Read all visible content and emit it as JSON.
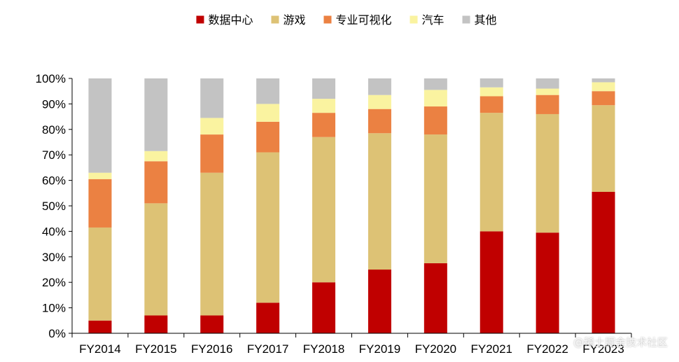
{
  "chart_data": {
    "type": "bar",
    "stacked": true,
    "categories": [
      "FY2014",
      "FY2015",
      "FY2016",
      "FY2017",
      "FY2018",
      "FY2019",
      "FY2020",
      "FY2021",
      "FY2022",
      "FY2023"
    ],
    "series": [
      {
        "name": "数据中心",
        "color": "#C00000",
        "values": [
          5,
          7,
          7,
          12,
          20,
          25,
          27.5,
          40,
          39.5,
          55.5
        ]
      },
      {
        "name": "游戏",
        "color": "#DDC275",
        "values": [
          36.5,
          44,
          56,
          59,
          57,
          53.5,
          50.5,
          46.5,
          46.5,
          34
        ]
      },
      {
        "name": "专业可视化",
        "color": "#EB8142",
        "values": [
          19,
          16.5,
          15,
          12,
          9.5,
          9.5,
          11,
          6.5,
          7.5,
          5.5
        ]
      },
      {
        "name": "汽车",
        "color": "#FAF3A0",
        "values": [
          2.5,
          4,
          6.5,
          7,
          5.5,
          5.5,
          6.5,
          3.5,
          2.5,
          3.5
        ]
      },
      {
        "name": "其他",
        "color": "#C3C3C3",
        "values": [
          37,
          28.5,
          15.5,
          10,
          8,
          6.5,
          4.5,
          3.5,
          4,
          1.5
        ]
      }
    ],
    "yticks": [
      "0%",
      "10%",
      "20%",
      "30%",
      "40%",
      "50%",
      "60%",
      "70%",
      "80%",
      "90%",
      "100%"
    ],
    "ylim": [
      0,
      100
    ],
    "grid": false,
    "legend_position": "top-center"
  },
  "watermark": "@稀土掘金技术社区"
}
